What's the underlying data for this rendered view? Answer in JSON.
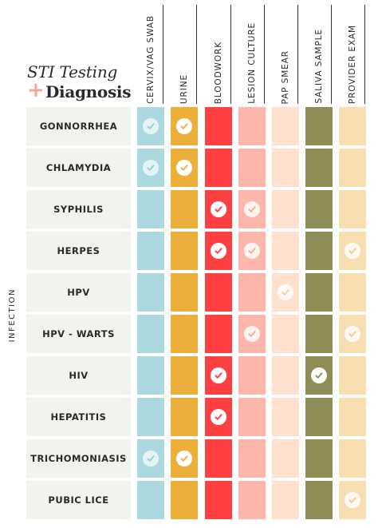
{
  "title": {
    "line1": "STI Testing",
    "plus": "+",
    "line2": "Diagnosis"
  },
  "axis_label": "INFECTION",
  "columns": [
    {
      "label": "CERVIX/VAG SWAB",
      "color": "#acd8e0",
      "check_color": "#8fcbd6",
      "check_opacity": 0.7
    },
    {
      "label": "URINE",
      "color": "#ecaf3a",
      "check_color": "#ecaf3a",
      "check_opacity": 1
    },
    {
      "label": "BLOODWORK",
      "color": "#ff4042",
      "check_color": "#ff4042",
      "check_opacity": 1
    },
    {
      "label": "LESION CULTURE",
      "color": "#fcb6ac",
      "check_color": "#f8a59a",
      "check_opacity": 0.85
    },
    {
      "label": "PAP SMEAR",
      "color": "#fde0cd",
      "check_color": "#f6c6a8",
      "check_opacity": 0.85
    },
    {
      "label": "SALIVA SAMPLE",
      "color": "#8f8c57",
      "check_color": "#8f8c57",
      "check_opacity": 1
    },
    {
      "label": "PROVIDER EXAM",
      "color": "#f7dfb1",
      "check_color": "#eec98b",
      "check_opacity": 0.85
    }
  ],
  "rows": [
    {
      "name": "GONNORRHEA",
      "checks": [
        true,
        true,
        false,
        false,
        false,
        false,
        false
      ]
    },
    {
      "name": "CHLAMYDIA",
      "checks": [
        true,
        true,
        false,
        false,
        false,
        false,
        false
      ]
    },
    {
      "name": "SYPHILIS",
      "checks": [
        false,
        false,
        true,
        true,
        false,
        false,
        false
      ]
    },
    {
      "name": "HERPES",
      "checks": [
        false,
        false,
        true,
        true,
        false,
        false,
        true
      ]
    },
    {
      "name": "HPV",
      "checks": [
        false,
        false,
        false,
        false,
        true,
        false,
        false
      ]
    },
    {
      "name": "HPV - WARTS",
      "checks": [
        false,
        false,
        false,
        true,
        false,
        false,
        true
      ]
    },
    {
      "name": "HIV",
      "checks": [
        false,
        false,
        true,
        false,
        false,
        true,
        false
      ]
    },
    {
      "name": "HEPATITIS",
      "checks": [
        false,
        false,
        true,
        false,
        false,
        false,
        false
      ]
    },
    {
      "name": "TRICHOMONIASIS",
      "checks": [
        true,
        true,
        false,
        false,
        false,
        false,
        false
      ]
    },
    {
      "name": "PUBIC LICE",
      "checks": [
        false,
        false,
        false,
        false,
        false,
        false,
        true
      ]
    }
  ]
}
